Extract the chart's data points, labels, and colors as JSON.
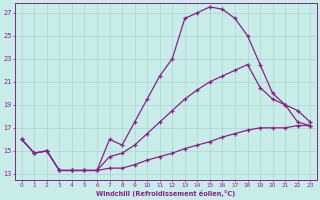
{
  "xlabel": "Windchill (Refroidissement éolien,°C)",
  "bg_color": "#c8ece8",
  "grid_color": "#aad4d0",
  "line_color": "#882288",
  "xlim": [
    -0.5,
    23.5
  ],
  "ylim": [
    12.5,
    27.8
  ],
  "xticks": [
    0,
    1,
    2,
    3,
    4,
    5,
    6,
    7,
    8,
    9,
    10,
    11,
    12,
    13,
    14,
    15,
    16,
    17,
    18,
    19,
    20,
    21,
    22,
    23
  ],
  "yticks": [
    13,
    15,
    17,
    19,
    21,
    23,
    25,
    27
  ],
  "line1_x": [
    0,
    1,
    2,
    3,
    4,
    5,
    6,
    7,
    8,
    9,
    10,
    11,
    12,
    13,
    14,
    15,
    16,
    17,
    18,
    19,
    20,
    21,
    22,
    23
  ],
  "line1_y": [
    16.0,
    14.8,
    15.0,
    13.3,
    13.3,
    13.3,
    13.3,
    13.5,
    13.5,
    13.8,
    14.2,
    14.5,
    14.8,
    15.2,
    15.5,
    15.8,
    16.2,
    16.5,
    16.8,
    17.0,
    17.0,
    17.0,
    17.2,
    17.2
  ],
  "line2_x": [
    0,
    1,
    2,
    3,
    4,
    5,
    6,
    7,
    8,
    9,
    10,
    11,
    12,
    13,
    14,
    15,
    16,
    17,
    18,
    19,
    20,
    21,
    22,
    23
  ],
  "line2_y": [
    16.0,
    14.8,
    15.0,
    13.3,
    13.3,
    13.3,
    13.3,
    14.5,
    14.8,
    15.5,
    16.5,
    17.5,
    18.5,
    19.5,
    20.3,
    21.0,
    21.5,
    22.0,
    22.5,
    20.5,
    19.5,
    19.0,
    18.5,
    17.5
  ],
  "line3_x": [
    0,
    1,
    2,
    3,
    4,
    5,
    6,
    7,
    8,
    9,
    10,
    11,
    12,
    13,
    14,
    15,
    16,
    17,
    18,
    19,
    20,
    21,
    22,
    23
  ],
  "line3_y": [
    16.0,
    14.8,
    15.0,
    13.3,
    13.3,
    13.3,
    13.3,
    16.0,
    15.5,
    17.5,
    19.5,
    21.5,
    23.0,
    26.5,
    27.0,
    27.5,
    27.3,
    26.5,
    25.0,
    22.5,
    20.0,
    19.0,
    17.5,
    17.2
  ]
}
